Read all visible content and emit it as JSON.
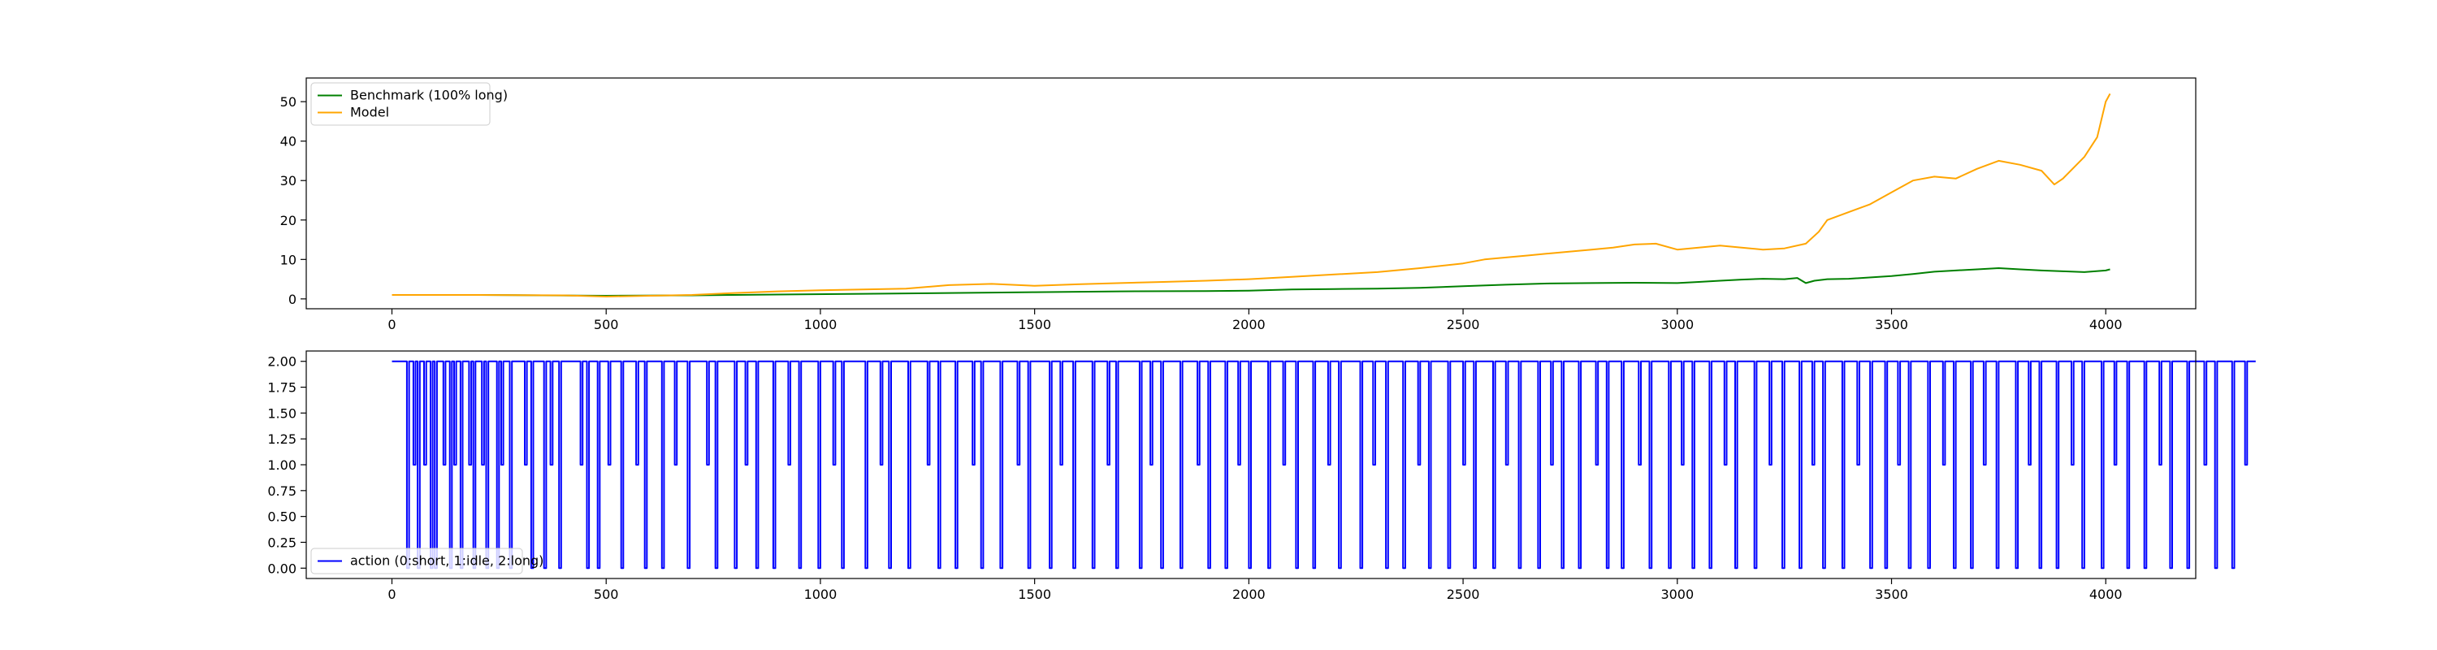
{
  "chart_data": [
    {
      "type": "line",
      "title": "",
      "xlabel": "",
      "ylabel": "",
      "xlim": [
        -200,
        4210
      ],
      "ylim": [
        -2.5,
        56
      ],
      "x_ticks": [
        0,
        500,
        1000,
        1500,
        2000,
        2500,
        3000,
        3500,
        4000
      ],
      "y_ticks": [
        0,
        10,
        20,
        30,
        40,
        50
      ],
      "legend_position": "top-left",
      "grid": false,
      "series": [
        {
          "name": "Benchmark (100% long)",
          "color": "#008000",
          "x": [
            0,
            200,
            350,
            500,
            700,
            900,
            1100,
            1300,
            1500,
            1700,
            1900,
            2000,
            2100,
            2200,
            2300,
            2400,
            2500,
            2600,
            2700,
            2800,
            2900,
            3000,
            3050,
            3100,
            3150,
            3200,
            3250,
            3280,
            3300,
            3320,
            3350,
            3400,
            3500,
            3550,
            3600,
            3650,
            3700,
            3750,
            3800,
            3850,
            3900,
            3950,
            4000,
            4010
          ],
          "values": [
            1.0,
            1.0,
            0.9,
            0.8,
            0.9,
            1.1,
            1.3,
            1.5,
            1.7,
            1.9,
            2.0,
            2.1,
            2.4,
            2.5,
            2.6,
            2.8,
            3.2,
            3.6,
            3.9,
            4.0,
            4.1,
            4.0,
            4.3,
            4.6,
            4.9,
            5.1,
            5.0,
            5.3,
            4.0,
            4.6,
            5.0,
            5.1,
            5.8,
            6.3,
            6.9,
            7.2,
            7.5,
            7.8,
            7.5,
            7.2,
            7.0,
            6.8,
            7.2,
            7.5
          ]
        },
        {
          "name": "Model",
          "color": "#ffa500",
          "x": [
            0,
            200,
            400,
            500,
            700,
            800,
            900,
            1000,
            1100,
            1200,
            1300,
            1400,
            1500,
            1600,
            1700,
            1800,
            1900,
            2000,
            2100,
            2200,
            2300,
            2400,
            2500,
            2550,
            2600,
            2650,
            2700,
            2750,
            2800,
            2850,
            2900,
            2950,
            3000,
            3050,
            3100,
            3150,
            3200,
            3250,
            3300,
            3330,
            3350,
            3400,
            3450,
            3500,
            3550,
            3600,
            3650,
            3700,
            3750,
            3800,
            3850,
            3880,
            3900,
            3950,
            3980,
            4000,
            4010
          ],
          "values": [
            1.0,
            1.0,
            0.9,
            0.6,
            1.0,
            1.5,
            1.9,
            2.2,
            2.4,
            2.6,
            3.5,
            3.8,
            3.3,
            3.7,
            4.0,
            4.3,
            4.6,
            5.0,
            5.6,
            6.2,
            6.8,
            7.8,
            9.0,
            10.0,
            10.5,
            11.0,
            11.5,
            12.0,
            12.5,
            13.0,
            13.8,
            14.0,
            12.5,
            13.0,
            13.5,
            13.0,
            12.5,
            12.8,
            14.0,
            17.0,
            20.0,
            22.0,
            24.0,
            27.0,
            30.0,
            31.0,
            30.5,
            33.0,
            35.0,
            34.0,
            32.5,
            29.0,
            30.5,
            36.0,
            41.0,
            50.0,
            52.0
          ]
        }
      ]
    },
    {
      "type": "line",
      "title": "",
      "xlabel": "",
      "ylabel": "",
      "xlim": [
        -200,
        4210
      ],
      "ylim": [
        -0.1,
        2.1
      ],
      "x_ticks": [
        0,
        500,
        1000,
        1500,
        2000,
        2500,
        3000,
        3500,
        4000
      ],
      "y_ticks": [
        0.0,
        0.25,
        0.5,
        0.75,
        1.0,
        1.25,
        1.5,
        1.75,
        2.0
      ],
      "y_tick_labels": [
        "0.00",
        "0.25",
        "0.50",
        "0.75",
        "1.00",
        "1.25",
        "1.50",
        "1.75",
        "2.00"
      ],
      "legend_position": "bottom-left",
      "grid": false,
      "step": true,
      "series": [
        {
          "name": "action (0:short, 1:idle, 2:long)",
          "color": "#0000ff",
          "x_start": 0,
          "x_step": 5,
          "values": [
            2,
            2,
            2,
            2,
            2,
            2,
            2,
            0,
            2,
            2,
            1,
            2,
            0,
            2,
            2,
            1,
            2,
            2,
            0,
            2,
            0,
            2,
            2,
            2,
            1,
            2,
            2,
            0,
            2,
            1,
            2,
            2,
            0,
            2,
            2,
            2,
            1,
            2,
            0,
            2,
            2,
            2,
            1,
            2,
            0,
            2,
            2,
            2,
            2,
            0,
            2,
            1,
            2,
            2,
            2,
            0,
            2,
            2,
            2,
            2,
            2,
            2,
            1,
            2,
            2,
            0,
            2,
            2,
            2,
            2,
            2,
            0,
            2,
            2,
            1,
            2,
            2,
            2,
            0,
            2,
            2,
            2,
            2,
            2,
            2,
            2,
            2,
            2,
            1,
            2,
            2,
            0,
            2,
            2,
            2,
            2,
            0,
            2,
            2,
            2,
            2,
            1,
            2,
            2,
            2,
            2,
            2,
            0,
            2,
            2,
            2,
            2,
            2,
            2,
            1,
            2,
            2,
            2,
            0,
            2,
            2,
            2,
            2,
            2,
            2,
            2,
            0,
            2,
            2,
            2,
            2,
            2,
            1,
            2,
            2,
            2,
            2,
            2,
            0,
            2,
            2,
            2,
            2,
            2,
            2,
            2,
            2,
            1,
            2,
            2,
            2,
            0,
            2,
            2,
            2,
            2,
            2,
            2,
            2,
            2,
            0,
            2,
            2,
            2,
            2,
            1,
            2,
            2,
            2,
            2,
            0,
            2,
            2,
            2,
            2,
            2,
            2,
            2,
            0,
            2,
            2,
            2,
            2,
            2,
            2,
            1,
            2,
            2,
            2,
            2,
            0,
            2,
            2,
            2,
            2,
            2,
            2,
            2,
            2,
            0,
            2,
            2,
            2,
            2,
            2,
            2,
            1,
            2,
            2,
            2,
            0,
            2,
            2,
            2,
            2,
            2,
            2,
            2,
            2,
            2,
            2,
            0,
            2,
            2,
            2,
            2,
            2,
            2,
            1,
            2,
            2,
            2,
            0,
            2,
            2,
            2,
            2,
            2,
            2,
            2,
            2,
            0,
            2,
            2,
            2,
            2,
            2,
            2,
            2,
            2,
            1,
            2,
            2,
            2,
            2,
            0,
            2,
            2,
            2,
            2,
            2,
            2,
            2,
            0,
            2,
            2,
            2,
            2,
            2,
            2,
            2,
            1,
            2,
            2,
            2,
            0,
            2,
            2,
            2,
            2,
            2,
            2,
            2,
            2,
            0,
            2,
            2,
            2,
            2,
            2,
            2,
            2,
            1,
            2,
            2,
            2,
            2,
            0,
            2,
            2,
            2,
            2,
            2,
            2,
            2,
            2,
            2,
            0,
            2,
            2,
            2,
            2,
            1,
            2,
            2,
            2,
            2,
            2,
            0,
            2,
            2,
            2,
            2,
            2,
            2,
            2,
            2,
            0,
            2,
            2,
            2,
            2,
            2,
            2,
            1,
            2,
            2,
            2,
            0,
            2,
            2,
            2,
            2,
            2,
            2,
            2,
            2,
            2,
            2,
            0,
            2,
            2,
            2,
            2,
            1,
            2,
            2,
            2,
            2,
            0,
            2,
            2,
            2,
            2,
            2,
            2,
            2,
            2,
            0,
            2,
            2,
            2,
            2,
            2,
            2,
            2,
            1,
            2,
            2,
            2,
            2,
            0,
            2,
            2,
            2,
            2,
            2,
            2,
            2,
            0,
            2,
            2,
            2,
            2,
            2,
            1,
            2,
            2,
            2,
            2,
            0,
            2,
            2,
            2,
            2,
            2,
            2,
            2,
            2,
            0,
            2,
            2,
            2,
            2,
            2,
            2,
            1,
            2,
            2,
            2,
            2,
            2,
            0,
            2,
            2,
            2,
            2,
            2,
            2,
            2,
            0,
            2,
            2,
            2,
            2,
            2,
            2,
            1,
            2,
            2,
            2,
            2,
            0,
            2,
            2,
            2,
            2,
            2,
            2,
            2,
            2,
            2,
            0,
            2,
            2,
            2,
            2,
            2,
            1,
            2,
            2,
            2,
            2,
            2,
            0,
            2,
            2,
            2,
            2,
            2,
            2,
            2,
            0,
            2,
            2,
            2,
            2,
            2,
            2,
            1,
            2,
            2,
            2,
            2,
            0,
            2,
            2,
            2,
            2,
            2,
            2,
            2,
            2,
            0,
            2,
            2,
            2,
            2,
            2,
            2,
            1,
            2,
            2,
            2,
            2,
            0,
            2,
            2,
            2,
            2,
            2,
            2,
            2,
            2,
            0,
            2,
            2,
            2,
            2,
            2,
            1,
            2,
            2,
            2,
            2,
            2,
            0,
            2,
            2,
            2,
            2,
            2,
            2,
            2,
            2,
            0,
            2,
            2,
            2,
            2,
            2,
            1,
            2,
            2,
            2,
            2,
            0,
            2,
            2,
            2,
            2,
            2,
            2,
            2,
            0,
            2,
            2,
            2,
            2,
            2,
            2,
            2,
            1,
            2,
            2,
            2,
            2,
            0,
            2,
            2,
            2,
            2,
            2,
            2,
            0,
            2,
            2,
            2,
            2,
            2,
            2,
            2,
            1,
            2,
            2,
            2,
            2,
            0,
            2,
            2,
            2,
            2,
            2,
            2,
            2,
            2,
            0,
            2,
            2,
            2,
            2,
            2,
            1,
            2,
            2,
            2,
            2,
            0,
            2,
            2,
            2,
            2,
            2,
            2,
            2,
            0,
            2,
            2,
            2,
            2,
            2,
            2,
            1,
            2,
            2,
            2,
            2,
            0,
            2,
            2,
            2,
            2,
            2,
            2,
            2,
            2,
            0,
            2,
            2,
            2,
            2,
            2,
            2,
            1,
            2,
            2,
            2,
            2,
            2,
            0,
            2,
            2,
            2,
            2,
            2,
            2,
            2,
            0,
            2,
            2,
            2,
            2,
            2,
            1,
            2,
            2,
            2,
            2,
            0,
            2,
            2,
            2,
            2,
            2,
            2,
            2,
            2,
            0,
            2,
            2,
            2,
            2,
            2,
            2,
            1,
            2,
            2,
            2,
            2,
            2,
            0,
            2,
            2,
            2,
            2,
            2,
            2,
            0,
            2,
            2,
            2,
            2,
            2,
            1,
            2,
            2,
            2,
            2,
            0,
            2,
            2,
            2,
            2,
            2,
            2,
            2,
            2,
            0,
            2,
            2,
            2,
            2,
            2,
            2,
            1,
            2,
            2,
            2,
            2,
            0,
            2,
            2,
            2,
            2,
            2,
            2,
            2,
            0,
            2,
            2,
            2,
            2,
            2,
            1,
            2,
            2,
            2,
            2,
            2,
            0,
            2,
            2,
            2,
            2,
            2,
            2,
            2,
            2,
            0,
            2,
            2,
            2,
            2,
            2,
            1,
            2,
            2,
            2,
            2,
            0,
            2,
            2,
            2,
            2,
            2,
            2,
            2,
            0,
            2,
            2,
            2,
            2,
            2,
            2,
            1,
            2,
            2,
            2,
            2,
            0,
            2,
            2,
            2,
            2,
            2,
            2,
            2,
            2,
            0,
            2,
            2,
            2,
            2,
            2,
            1,
            2,
            2,
            2,
            2,
            2,
            0,
            2,
            2,
            2,
            2,
            2,
            2,
            2,
            0,
            2,
            2,
            2,
            2,
            2,
            2,
            1,
            2,
            2,
            2,
            2,
            0,
            2,
            2,
            2,
            2,
            2,
            2,
            2,
            0,
            2,
            2,
            2,
            2,
            2,
            2,
            2,
            1,
            2,
            2,
            2,
            2,
            0,
            2,
            2,
            2,
            2,
            2,
            2,
            2,
            0,
            2,
            2,
            2,
            2,
            2,
            1,
            2,
            2,
            2,
            2,
            2
          ]
        }
      ]
    }
  ]
}
